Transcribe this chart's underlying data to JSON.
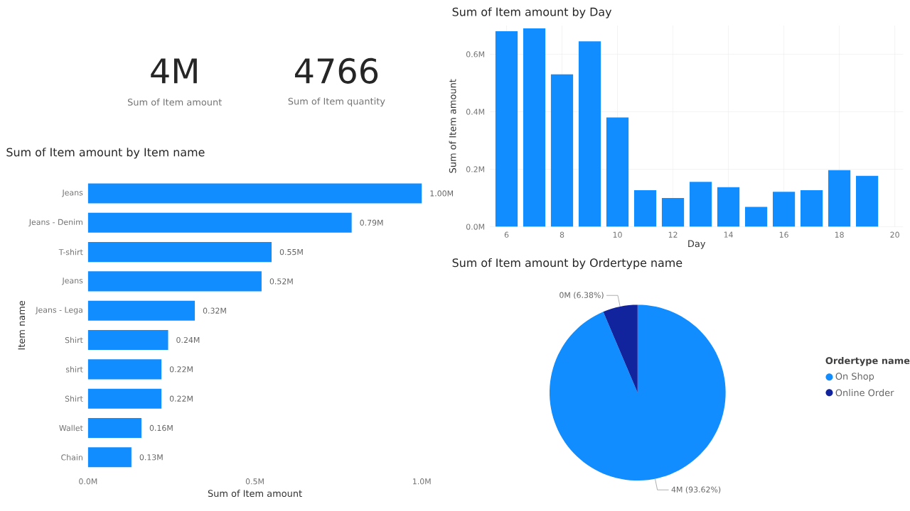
{
  "chart_data": [
    {
      "type": "other",
      "annotations": [
        "4M",
        "Sum of Item amount",
        "4766",
        "Sum of Item quantity"
      ]
    },
    {
      "type": "bar",
      "orientation": "horizontal",
      "title": "Sum of Item amount by Item name",
      "xlabel": "Sum of Item amount",
      "ylabel": "Item name",
      "categories": [
        "Jeans",
        "Jeans - Denim",
        "T-shirt",
        "Jeans",
        "Jeans - Lega",
        "Shirt",
        "shirt",
        "Shirt",
        "Wallet",
        "Chain"
      ],
      "values": [
        1.0,
        0.79,
        0.55,
        0.52,
        0.32,
        0.24,
        0.22,
        0.22,
        0.16,
        0.13
      ],
      "value_labels": [
        "1.00M",
        "0.79M",
        "0.55M",
        "0.52M",
        "0.32M",
        "0.24M",
        "0.22M",
        "0.22M",
        "0.16M",
        "0.13M"
      ],
      "color": "#118dff",
      "xlim": [
        0,
        1.0
      ],
      "xticks": [
        {
          "value": 0,
          "label": "0.0M"
        },
        {
          "value": 0.5,
          "label": "0.5M"
        },
        {
          "value": 1.0,
          "label": "1.0M"
        }
      ]
    },
    {
      "type": "bar",
      "title": "Sum of Item amount by Day",
      "xlabel": "Day",
      "ylabel": "Sum of Item amount",
      "x": [
        6,
        7,
        8,
        9,
        10,
        11,
        12,
        13,
        14,
        15,
        16,
        17,
        18,
        19
      ],
      "values": [
        0.68,
        0.69,
        0.53,
        0.645,
        0.38,
        0.127,
        0.1,
        0.156,
        0.138,
        0.069,
        0.122,
        0.127,
        0.197,
        0.177
      ],
      "color": "#118dff",
      "xlim": [
        5.4,
        20.3
      ],
      "ylim": [
        0,
        0.7
      ],
      "xticks": [
        6,
        8,
        10,
        12,
        14,
        16,
        18,
        20
      ],
      "yticks": [
        {
          "value": 0,
          "label": "0.0M"
        },
        {
          "value": 0.2,
          "label": "0.2M"
        },
        {
          "value": 0.4,
          "label": "0.4M"
        },
        {
          "value": 0.6,
          "label": "0.6M"
        }
      ],
      "grid": true
    },
    {
      "type": "pie",
      "title": "Sum of Item amount by Ordertype name",
      "legend_title": "Ordertype name",
      "legend": "right",
      "categories": [
        "On Shop",
        "Online Order"
      ],
      "values": [
        93.62,
        6.38
      ],
      "value_labels": [
        "4M (93.62%)",
        "0M (6.38%)"
      ],
      "colors": [
        "#118dff",
        "#12239e"
      ]
    }
  ]
}
